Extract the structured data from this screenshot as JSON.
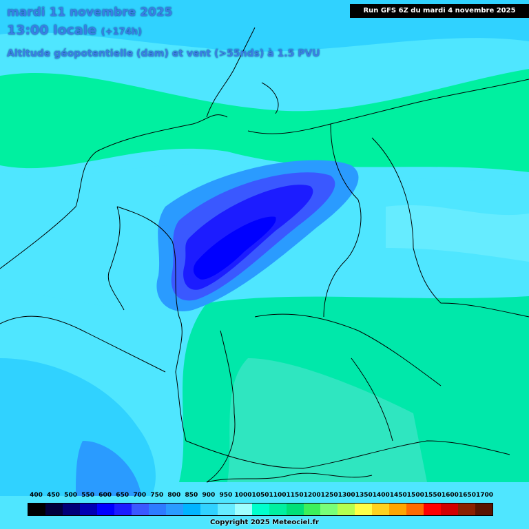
{
  "header": {
    "date": "mardi 11 novembre 2025",
    "time": "13:00 locale",
    "lead": "(+174h)",
    "parameter": "Altitude géopotentielle (dam) et vent (>55nds) à 1.5 PVU"
  },
  "run_label": "Run GFS 6Z du mardi 4 novembre 2025",
  "legend": {
    "values": [
      "400",
      "450",
      "500",
      "550",
      "600",
      "650",
      "700",
      "750",
      "800",
      "850",
      "900",
      "950",
      "1000",
      "1050",
      "1100",
      "1150",
      "1200",
      "1250",
      "1300",
      "1350",
      "1400",
      "1450",
      "1500",
      "1550",
      "1600",
      "1650",
      "1700"
    ],
    "colors": [
      "#000000",
      "#00003c",
      "#000078",
      "#0000b4",
      "#0000ff",
      "#1c1cff",
      "#3a58ff",
      "#2d7cff",
      "#2a9bff",
      "#00b4ff",
      "#30d2ff",
      "#66ecff",
      "#a0ffff",
      "#00ffcc",
      "#00f0a0",
      "#00e078",
      "#3cf05a",
      "#78ff78",
      "#b4ff50",
      "#ffff46",
      "#ffd21e",
      "#ffa500",
      "#ff6a00",
      "#ff0000",
      "#d20000",
      "#8b2000",
      "#5a1400"
    ]
  },
  "copyright": "Copyright 2025 Meteociel.fr",
  "colors": {
    "low_core": "#0000ff",
    "medium": "#30d2ff",
    "high": "#00e8aa",
    "background": "#4fe6ff"
  }
}
